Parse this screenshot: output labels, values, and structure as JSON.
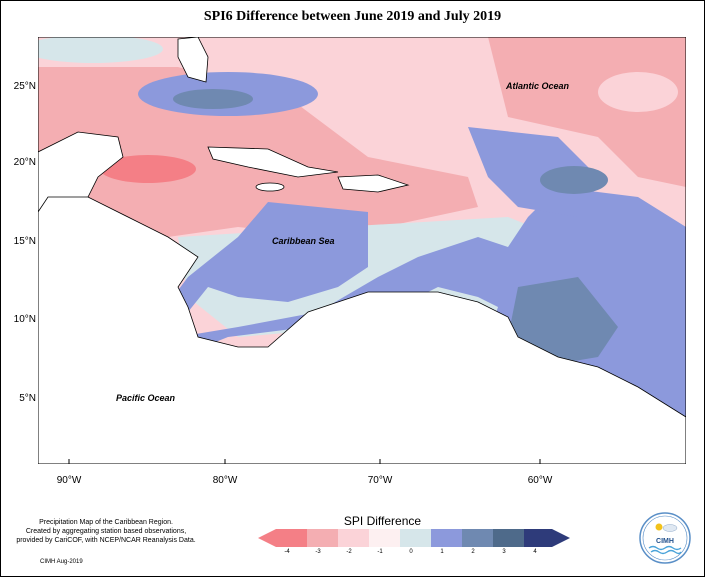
{
  "title": "SPI6 Difference between June 2019 and July 2019",
  "axes": {
    "latitude_labels": [
      "25°N",
      "20°N",
      "15°N",
      "10°N",
      "5°N"
    ],
    "longitude_labels": [
      "90°W",
      "80°W",
      "70°W",
      "60°W"
    ]
  },
  "map_labels": {
    "atlantic": "Atlantic Ocean",
    "caribbean": "Caribbean Sea",
    "pacific": "Pacific Ocean"
  },
  "legend": {
    "title": "SPI Difference",
    "ticks": [
      "-4",
      "-3",
      "-2",
      "-1",
      "0",
      "1",
      "2",
      "3",
      "4"
    ],
    "colors": [
      "#f47f86",
      "#f4aeb2",
      "#fbd3d8",
      "#fdf0f1",
      "#d6e6ea",
      "#8c99dc",
      "#6f89b1",
      "#4e6a8a",
      "#2e3b7a"
    ]
  },
  "credit": {
    "lines": [
      "Precipitation Map of the Caribbean Region.",
      "Created by aggregating station based observations,",
      "provided by CariCOF, with NCEP/NCAR Reanalysis Data."
    ],
    "footer": "CIMH Aug-2019"
  },
  "logo": {
    "text": "CIMH"
  },
  "colors": {
    "dry_strong": "#f47f86",
    "dry": "#f4aeb2",
    "dry_light": "#fbd3d8",
    "neutral_pink": "#fdf0f1",
    "neutral_blue": "#d6e6ea",
    "wet": "#8c99dc",
    "wet_teal": "#6f89b1",
    "land_white": "#ffffff"
  }
}
